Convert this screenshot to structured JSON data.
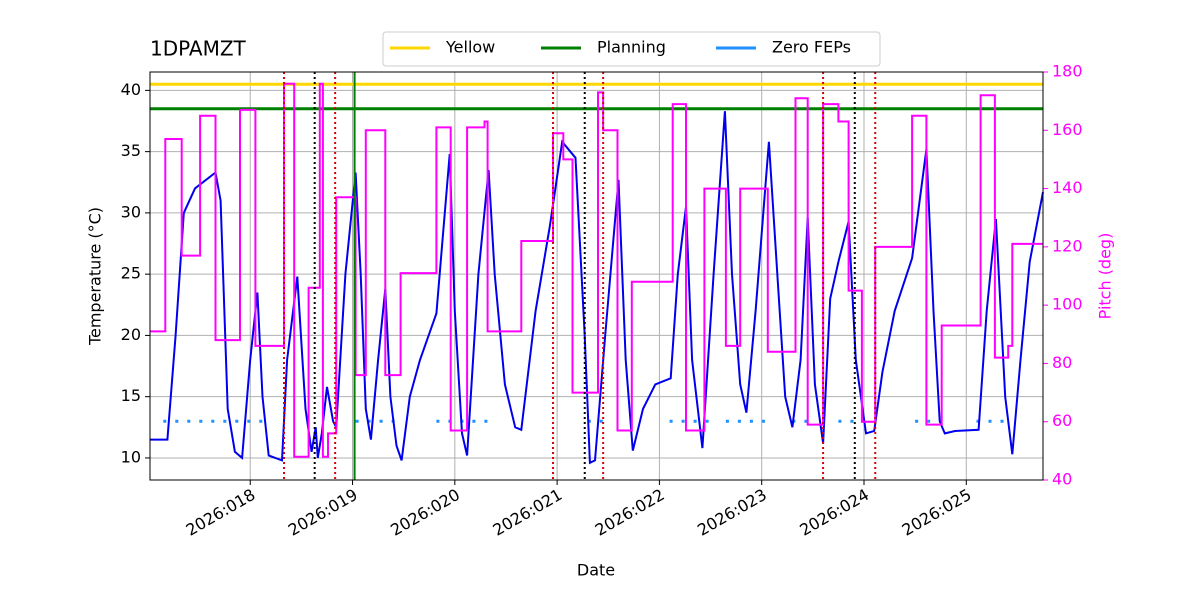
{
  "chart_data": {
    "type": "line",
    "title": "1DPAMZT",
    "x_label": "Date",
    "y_label": "Temperature (°C)",
    "y2_label": "Pitch (deg)",
    "xlim": [
      17.02,
      25.75
    ],
    "ylim": [
      8.2,
      41.5
    ],
    "y2lim": [
      40,
      180
    ],
    "xticks": [
      {
        "value": 18,
        "label": "2026:018"
      },
      {
        "value": 19,
        "label": "2026:019"
      },
      {
        "value": 20,
        "label": "2026:020"
      },
      {
        "value": 21,
        "label": "2026:021"
      },
      {
        "value": 22,
        "label": "2026:022"
      },
      {
        "value": 23,
        "label": "2026:023"
      },
      {
        "value": 24,
        "label": "2026:024"
      },
      {
        "value": 25,
        "label": "2026:025"
      }
    ],
    "yticks": [
      10,
      15,
      20,
      25,
      30,
      35,
      40
    ],
    "y2ticks": [
      40,
      60,
      80,
      100,
      120,
      140,
      160,
      180
    ],
    "grid": true,
    "legend": "top-center",
    "series": [
      {
        "color": "#0000ee",
        "x": [
          17.02,
          17.19,
          17.27,
          17.35,
          17.46,
          17.66,
          17.71,
          17.78,
          17.85,
          17.92,
          18.0,
          18.07,
          18.12,
          18.18,
          18.31,
          18.36,
          18.46,
          18.54,
          18.6,
          18.64,
          18.66,
          18.7,
          18.75,
          18.81,
          18.84,
          18.93,
          19.03,
          19.08,
          19.13,
          19.18,
          19.25,
          19.32,
          19.37,
          19.43,
          19.48,
          19.56,
          19.66,
          19.82,
          19.95,
          20.0,
          20.07,
          20.12,
          20.23,
          20.33,
          20.39,
          20.49,
          20.59,
          20.65,
          20.79,
          20.93,
          21.05,
          21.18,
          21.27,
          21.32,
          21.37,
          21.47,
          21.6,
          21.67,
          21.74,
          21.84,
          21.96,
          22.11,
          22.18,
          22.26,
          22.32,
          22.42,
          22.53,
          22.64,
          22.71,
          22.79,
          22.85,
          22.94,
          23.07,
          23.16,
          23.23,
          23.3,
          23.38,
          23.45,
          23.52,
          23.6,
          23.67,
          23.75,
          23.85,
          23.92,
          24.02,
          24.1,
          24.18,
          24.3,
          24.47,
          24.61,
          24.68,
          24.74,
          24.79,
          24.89,
          25.12,
          25.2,
          25.29,
          25.38,
          25.45,
          25.53,
          25.62,
          25.75
        ],
        "values": [
          11.5,
          11.5,
          20,
          30,
          32,
          33.3,
          31,
          14,
          10.5,
          10,
          18,
          23.5,
          15,
          10.2,
          9.8,
          18,
          24.8,
          14,
          10.5,
          12.5,
          10,
          12,
          15.8,
          13,
          12.5,
          25,
          33.3,
          25,
          14,
          11.5,
          18,
          23.8,
          15,
          11,
          9.8,
          15,
          18,
          21.8,
          34.8,
          22,
          12,
          10.2,
          25,
          33.5,
          25,
          16,
          12.5,
          12.3,
          22,
          29,
          35.8,
          34.5,
          20,
          9.6,
          9.8,
          20,
          32.7,
          18,
          10.6,
          14,
          16,
          16.5,
          25,
          30.5,
          18,
          10.8,
          25,
          38.3,
          25,
          16,
          13.7,
          22,
          35.8,
          24,
          15,
          12.5,
          18,
          29.6,
          16,
          11.2,
          23,
          26,
          29.3,
          18,
          12,
          12.2,
          17,
          22,
          26.3,
          35.2,
          22,
          13,
          12,
          12.2,
          12.3,
          22,
          29.5,
          15,
          10.3,
          18,
          26,
          31.7
        ]
      },
      {
        "color": "#ff00ff",
        "axis": "y2",
        "drawstyle": "steps-post",
        "x": [
          17.02,
          17.17,
          17.33,
          17.51,
          17.66,
          17.9,
          18.05,
          18.33,
          18.43,
          18.57,
          18.68,
          18.71,
          18.76,
          18.84,
          19.03,
          19.13,
          19.32,
          19.47,
          19.82,
          19.96,
          20.12,
          20.29,
          20.32,
          20.65,
          20.96,
          21.06,
          21.15,
          21.4,
          21.45,
          21.59,
          21.73,
          22.13,
          22.26,
          22.44,
          22.65,
          22.79,
          23.06,
          23.33,
          23.45,
          23.6,
          23.75,
          23.85,
          23.98,
          24.11,
          24.47,
          24.61,
          24.76,
          25.14,
          25.28,
          25.41,
          25.45,
          25.75
        ],
        "values": [
          91,
          157,
          117,
          165,
          88,
          167,
          86,
          176,
          48,
          106,
          176,
          48,
          56,
          137,
          76,
          160,
          76,
          111,
          161,
          57,
          161,
          163,
          91,
          122,
          159,
          150,
          70,
          173,
          160,
          57,
          108,
          169,
          57,
          140,
          86,
          140,
          84,
          171,
          59,
          169,
          163,
          105,
          60,
          120,
          165,
          59,
          93,
          172,
          82,
          86,
          121,
          121
        ]
      }
    ],
    "hlines": [
      {
        "name": "Yellow",
        "color": "#ffd700",
        "value": 40.5
      },
      {
        "name": "Planning",
        "color": "#008000",
        "value": 38.5
      },
      {
        "name": "Zero FEPs",
        "color": "#1e90ff",
        "value": 13,
        "style": "dotted",
        "spans": [
          [
            17.15,
            18.15
          ],
          [
            19.03,
            19.5
          ],
          [
            19.82,
            20.35
          ],
          [
            21.3,
            21.5
          ],
          [
            22.1,
            22.5
          ],
          [
            22.65,
            23.1
          ],
          [
            23.3,
            23.45
          ],
          [
            23.75,
            24.0
          ],
          [
            24.5,
            24.8
          ],
          [
            25.1,
            25.45
          ]
        ]
      }
    ],
    "vlines": [
      {
        "color": "#dd0000",
        "style": "dotted",
        "x": [
          18.33,
          18.83,
          20.96,
          21.45,
          23.6,
          24.11
        ]
      },
      {
        "color": "#000000",
        "style": "dotted",
        "x": [
          18.63,
          21.27,
          23.91
        ]
      },
      {
        "color": "#008000",
        "style": "solid",
        "x": [
          19.02
        ]
      }
    ]
  }
}
